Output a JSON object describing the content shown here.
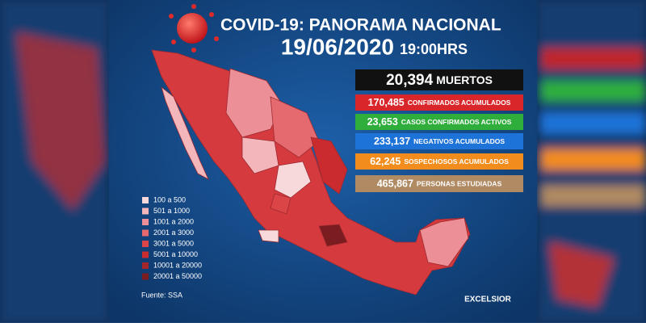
{
  "header": {
    "title": "COVID-19: PANORAMA NACIONAL",
    "date": "19/06/2020",
    "time": "19:00HRS"
  },
  "stats": [
    {
      "value": "20,394",
      "label": "MUERTOS",
      "color": "#111111"
    },
    {
      "value": "170,485",
      "label": "CONFIRMADOS ACUMULADOS",
      "color": "#d9262a"
    },
    {
      "value": "23,653",
      "label": "CASOS CONFIRMADOS ACTIVOS",
      "color": "#2fae3c"
    },
    {
      "value": "233,137",
      "label": "NEGATIVOS ACUMULADOS",
      "color": "#1e73d8"
    },
    {
      "value": "62,245",
      "label": "SOSPECHOSOS ACUMULADOS",
      "color": "#f28c1c"
    },
    {
      "value": "465,867",
      "label": "PERSONAS ESTUDIADAS",
      "color": "#b08a62"
    }
  ],
  "legend": [
    {
      "label": "100 a 500",
      "color": "#f7d9dc"
    },
    {
      "label": "501 a 1000",
      "color": "#f2b6bb"
    },
    {
      "label": "1001 a 2000",
      "color": "#ec8f96"
    },
    {
      "label": "2001 a 3000",
      "color": "#e46a70"
    },
    {
      "label": "3001 a 5000",
      "color": "#dc4548"
    },
    {
      "label": "5001 a 10000",
      "color": "#c92b2f"
    },
    {
      "label": "10001 a 20000",
      "color": "#a3262a"
    },
    {
      "label": "20001 a 50000",
      "color": "#7a1c20"
    }
  ],
  "source": "Fuente: SSA",
  "brand": "EXCELSIOR"
}
